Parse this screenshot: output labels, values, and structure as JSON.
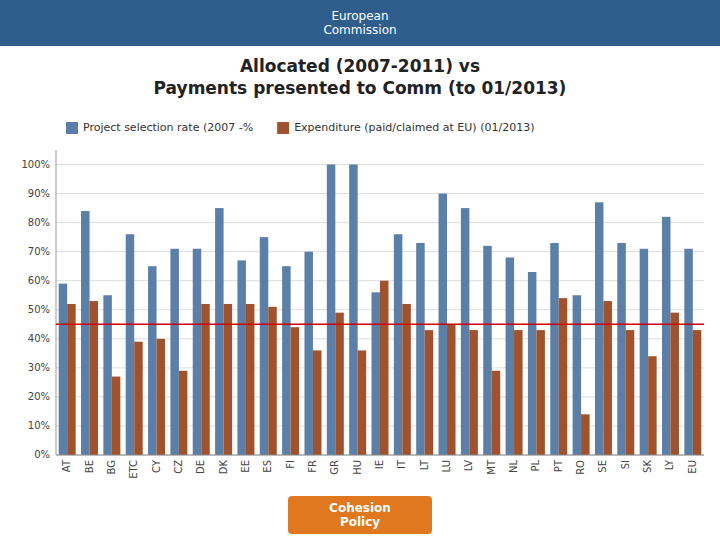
{
  "chart_data": {
    "type": "bar",
    "title": "Allocated (2007-2011) vs\nPayments presented to Comm (to 01/2013)",
    "annotations": [
      "European\nCommission",
      "Cohesion\nPolicy"
    ],
    "categories": [
      "AT",
      "BE",
      "BG",
      "ETC",
      "CY",
      "CZ",
      "DE",
      "DK",
      "EE",
      "ES",
      "FI",
      "FR",
      "GR",
      "HU",
      "IE",
      "IT",
      "LT",
      "LU",
      "LV",
      "MT",
      "NL",
      "PL",
      "PT",
      "RO",
      "SE",
      "SI",
      "SK",
      "LY",
      "EU"
    ],
    "series": [
      {
        "name": "Project selection rate (2007 -%",
        "color": "#5B7FA6",
        "values": [
          0.59,
          0.84,
          0.55,
          0.76,
          0.65,
          0.71,
          0.71,
          0.85,
          0.67,
          0.75,
          0.65,
          0.7,
          1.0,
          1.0,
          0.56,
          0.76,
          0.73,
          0.9,
          0.85,
          0.72,
          0.68,
          0.63,
          0.73,
          0.55,
          0.87,
          0.73,
          0.71,
          0.82,
          0.71
        ]
      },
      {
        "name": "Expenditure (paid/claimed at EU) (01/2013)",
        "color": "#A0522D",
        "values": [
          0.52,
          0.53,
          0.27,
          0.39,
          0.4,
          0.29,
          0.52,
          0.52,
          0.52,
          0.51,
          0.44,
          0.36,
          0.49,
          0.36,
          0.6,
          0.52,
          0.43,
          0.45,
          0.43,
          0.29,
          0.43,
          0.43,
          0.54,
          0.14,
          0.53,
          0.43,
          0.34,
          0.49,
          0.43
        ]
      }
    ],
    "reference_line": {
      "value": 0.45,
      "color": "#CC0000"
    },
    "ylim": [
      0,
      1.05
    ],
    "yticks": [
      {
        "value": 0.0,
        "label": "0%"
      },
      {
        "value": 0.1,
        "label": "10%"
      },
      {
        "value": 0.2,
        "label": "20%"
      },
      {
        "value": 0.3,
        "label": "30%"
      },
      {
        "value": 0.4,
        "label": "40%"
      },
      {
        "value": 0.5,
        "label": "50%"
      },
      {
        "value": 0.6,
        "label": "60%"
      },
      {
        "value": 0.7,
        "label": "70%"
      },
      {
        "value": 0.8,
        "label": "80%"
      },
      {
        "value": 0.9,
        "label": "90%"
      },
      {
        "value": 1.0,
        "label": "100%"
      }
    ],
    "grid": true,
    "legend": "upper left"
  }
}
